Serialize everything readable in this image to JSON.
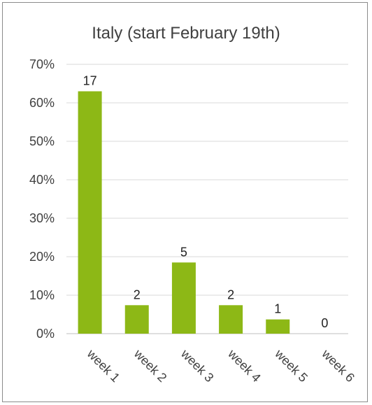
{
  "chart_data": {
    "type": "bar",
    "title": "Italy (start February 19th)",
    "categories": [
      "week 1",
      "week 2",
      "week 3",
      "week 4",
      "week 5",
      "week 6"
    ],
    "values": [
      0.63,
      0.074,
      0.185,
      0.074,
      0.037,
      0.0
    ],
    "data_labels": [
      "17",
      "2",
      "5",
      "2",
      "1",
      "0"
    ],
    "ylim": [
      0,
      0.7
    ],
    "yticks": [
      "0%",
      "10%",
      "20%",
      "30%",
      "40%",
      "50%",
      "60%",
      "70%"
    ],
    "bar_color": "#8db816",
    "grid": true,
    "legend": "none"
  }
}
